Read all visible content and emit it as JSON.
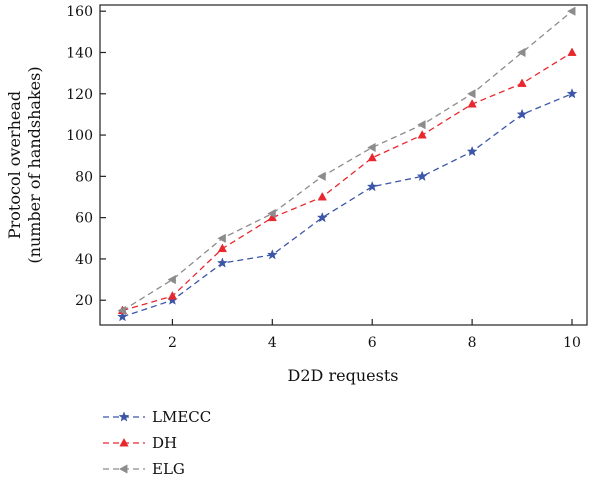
{
  "chart_data": {
    "type": "line",
    "title": "",
    "xlabel": "D2D requests",
    "ylabel_lines": [
      "Protocol overhead",
      "(number of handshakes)"
    ],
    "x": [
      1,
      2,
      3,
      4,
      5,
      6,
      7,
      8,
      9,
      10
    ],
    "xlim": [
      0.55,
      10.3
    ],
    "ylim": [
      8,
      163
    ],
    "x_ticks": [
      2,
      4,
      6,
      8,
      10
    ],
    "y_ticks": [
      20,
      40,
      60,
      80,
      100,
      120,
      140,
      160
    ],
    "grid": false,
    "legend_position": "below",
    "series": [
      {
        "name": "LMECC",
        "color": "#3b55a8",
        "marker": "star",
        "values": [
          12,
          20,
          38,
          42,
          60,
          75,
          80,
          92,
          110,
          120
        ]
      },
      {
        "name": "DH",
        "color": "#e8282e",
        "marker": "triangle-up",
        "values": [
          15,
          22,
          45,
          60,
          70,
          89,
          100,
          115,
          125,
          140
        ]
      },
      {
        "name": "ELG",
        "color": "#8c8c8c",
        "marker": "triangle-left",
        "values": [
          15,
          30,
          50,
          62,
          80,
          94,
          105,
          120,
          140,
          160
        ]
      }
    ]
  }
}
